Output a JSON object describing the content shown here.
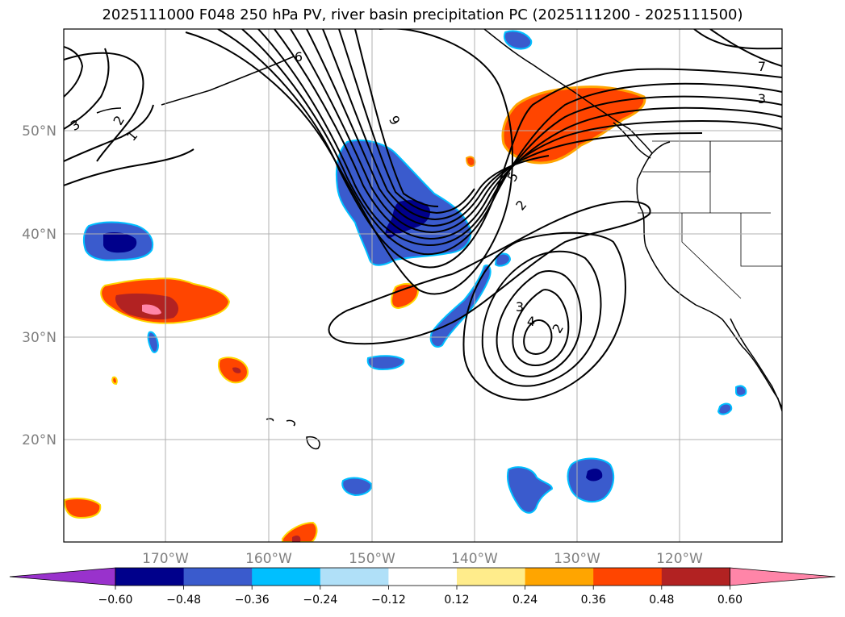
{
  "title": "2025111000 F048 250 hPa PV, river basin precipitation PC (2025111200 - 2025111500)",
  "lat_labels": [
    "50°N",
    "40°N",
    "30°N",
    "20°N"
  ],
  "lon_labels": [
    "170°W",
    "160°W",
    "150°W",
    "140°W",
    "130°W",
    "120°W"
  ],
  "colorbar": {
    "ticks": [
      "−0.60",
      "−0.48",
      "−0.36",
      "−0.24",
      "−0.12",
      "0.12",
      "0.24",
      "0.36",
      "0.48",
      "0.60"
    ],
    "colors": [
      "#9932cc",
      "#00008b",
      "#3a5bcd",
      "#00bfff",
      "#b0e0f8",
      "#ffffff",
      "#ffec8b",
      "#ffa500",
      "#ff4500",
      "#b22222",
      "#ff85a8"
    ]
  },
  "contour_labels": [
    "6",
    "9",
    "3",
    "2",
    "1",
    "7",
    "3",
    "5",
    "2",
    "3",
    "4",
    "2"
  ],
  "fill_colors": {
    "neg_light": "#00bfff",
    "neg_mid": "#3a5bcd",
    "neg_dark": "#00008b",
    "pos_yellow": "#ffd700",
    "pos_orange": "#ff4500",
    "pos_red": "#b22222",
    "pos_pink": "#ff85a8"
  }
}
